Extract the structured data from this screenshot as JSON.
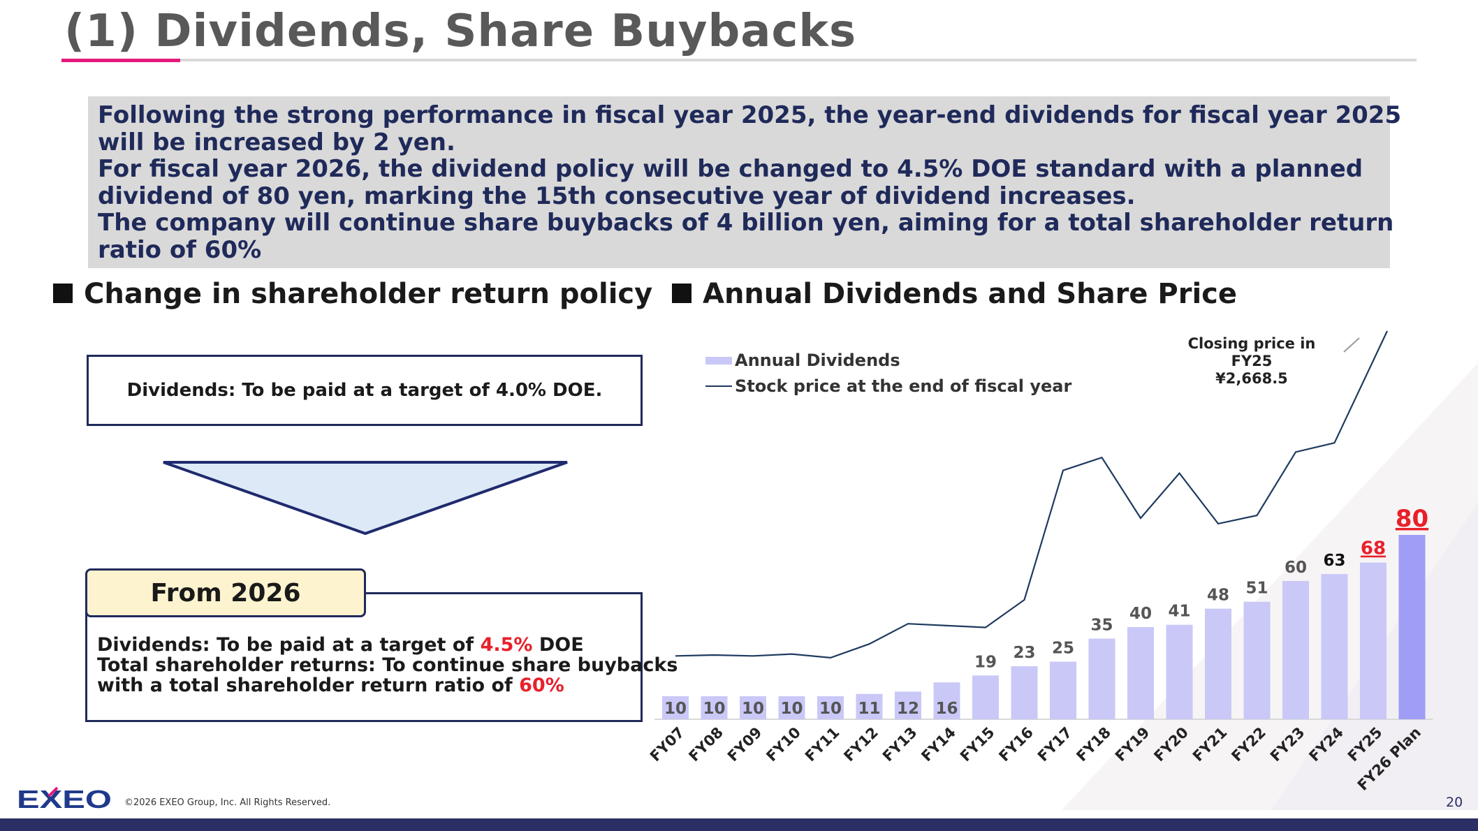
{
  "header": {
    "title": "(1)  Dividends, Share Buybacks"
  },
  "summary": {
    "lines": [
      "Following the strong performance in fiscal year 2025, the year-end dividends for fiscal year 2025",
      "will be increased by 2 yen.",
      "For fiscal year 2026, the dividend policy will be changed to 4.5% DOE standard with a planned",
      "dividend of 80 yen, marking the 15th consecutive year of dividend increases.",
      "The company will continue share buybacks of 4 billion yen, aiming for a total shareholder return",
      "ratio of 60%"
    ]
  },
  "policy": {
    "heading": "Change in shareholder return policy",
    "old_text": "Dividends: To be paid at a target of 4.0% DOE.",
    "new_label": "From 2026",
    "new_line1_a": "Dividends: To be paid at a target of ",
    "new_line1_b": "4.5%",
    "new_line1_c": " DOE",
    "new_line2": "Total shareholder returns: To continue share buybacks",
    "new_line3_a": "with a total shareholder return ratio of ",
    "new_line3_b": "60%",
    "accent_color": "#e8202a"
  },
  "chart_heading": "Annual Dividends and Share Price",
  "chart_data": {
    "type": "bar",
    "title": "",
    "categories": [
      "FY07",
      "FY08",
      "FY09",
      "FY10",
      "FY11",
      "FY12",
      "FY13",
      "FY14",
      "FY15",
      "FY16",
      "FY17",
      "FY18",
      "FY19",
      "FY20",
      "FY21",
      "FY22",
      "FY23",
      "FY24",
      "FY25",
      "FY26 Plan"
    ],
    "series": [
      {
        "name": "Annual Dividends",
        "type": "bar",
        "color": "#c9c8f7",
        "highlight_color": "#9f9df5",
        "values": [
          10,
          10,
          10,
          10,
          10,
          11,
          12,
          16,
          19,
          23,
          25,
          35,
          40,
          41,
          48,
          51,
          60,
          63,
          68,
          80
        ]
      },
      {
        "name": "Stock price at the end of fiscal year",
        "type": "line",
        "color": "#1f3a5f",
        "values": [
          690,
          700,
          690,
          710,
          670,
          820,
          1040,
          1020,
          1000,
          1300,
          2710,
          2850,
          2190,
          2680,
          2130,
          2220,
          2910,
          3010,
          null,
          null
        ]
      }
    ],
    "label_styles": [
      "plain",
      "plain",
      "plain",
      "plain",
      "plain",
      "plain",
      "plain",
      "plain",
      "plain",
      "plain",
      "plain",
      "plain",
      "plain",
      "plain",
      "plain",
      "plain",
      "plain",
      "dark",
      "red-underline",
      "red-large-underline"
    ],
    "legend": "top-left",
    "annotation": {
      "line1": "Closing price in FY25",
      "line2": "¥2,668.5"
    },
    "xlabel": "",
    "ylabel": "",
    "dividend_ylim": [
      0,
      100
    ],
    "grid": false
  },
  "footer": {
    "logo_text": "EXEO",
    "copyright": "©2026 EXEO Group, Inc. All Rights Reserved.",
    "page_number": "20",
    "bar_color": "#2b2f66"
  }
}
